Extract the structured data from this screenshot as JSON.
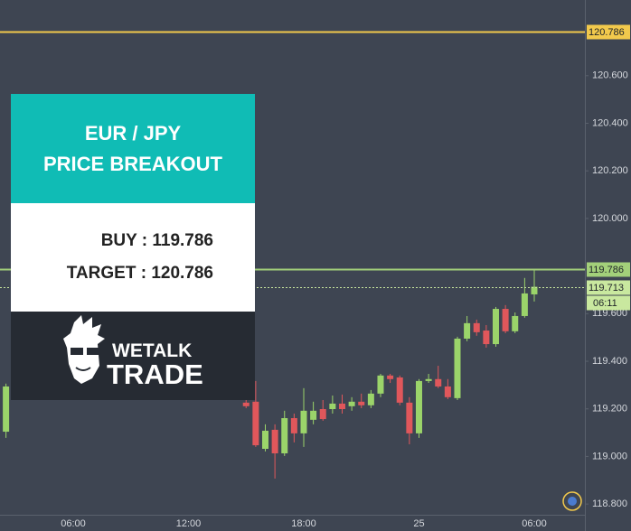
{
  "chart_data": {
    "type": "candlestick",
    "categories": [
      null,
      null,
      null,
      null,
      null,
      null,
      null,
      "06:00",
      null,
      null,
      null,
      null,
      null,
      null,
      null,
      null,
      null,
      null,
      null,
      "12:00",
      null,
      null,
      null,
      null,
      null,
      null,
      null,
      null,
      null,
      null,
      null,
      "18:00",
      null,
      null,
      null,
      null,
      null,
      null,
      null,
      null,
      null,
      null,
      null,
      "25",
      null,
      null,
      null,
      null,
      null,
      null,
      null,
      null,
      null,
      null,
      null,
      "06:00"
    ],
    "open": [
      119.104,
      null,
      null,
      null,
      null,
      null,
      null,
      null,
      null,
      null,
      null,
      null,
      null,
      null,
      null,
      null,
      null,
      null,
      null,
      null,
      null,
      null,
      null,
      null,
      null,
      119.226,
      119.23,
      119.032,
      119.112,
      119.013,
      119.161,
      119.097,
      119.154,
      119.199,
      119.199,
      119.222,
      119.211,
      119.23,
      119.215,
      119.264,
      119.34,
      119.332,
      119.226,
      119.097,
      119.317,
      119.325,
      119.294,
      119.245,
      119.495,
      119.56,
      119.529,
      119.472,
      119.62,
      119.526,
      119.59,
      119.681
    ],
    "high": [
      119.306,
      null,
      null,
      null,
      null,
      null,
      null,
      null,
      null,
      null,
      null,
      null,
      null,
      null,
      null,
      null,
      null,
      null,
      null,
      null,
      null,
      null,
      null,
      null,
      null,
      119.237,
      119.317,
      119.135,
      119.135,
      119.192,
      119.18,
      119.287,
      119.23,
      119.237,
      119.256,
      119.26,
      119.249,
      119.264,
      119.279,
      119.347,
      119.347,
      119.34,
      119.249,
      119.325,
      119.347,
      119.381,
      119.325,
      119.503,
      119.59,
      119.575,
      119.552,
      119.628,
      119.636,
      119.605,
      119.75,
      119.787
    ],
    "low": [
      119.078,
      null,
      null,
      null,
      null,
      null,
      null,
      null,
      null,
      null,
      null,
      null,
      null,
      null,
      null,
      null,
      null,
      null,
      null,
      null,
      null,
      null,
      null,
      null,
      null,
      119.203,
      119.04,
      119.021,
      118.907,
      119.002,
      119.059,
      119.04,
      119.135,
      119.15,
      119.18,
      119.18,
      119.192,
      119.203,
      119.203,
      119.249,
      119.309,
      119.215,
      119.051,
      119.078,
      119.309,
      119.287,
      119.241,
      119.237,
      119.484,
      119.507,
      119.457,
      119.461,
      119.518,
      119.518,
      119.583,
      119.651
    ],
    "close": [
      119.294,
      null,
      null,
      null,
      null,
      null,
      null,
      null,
      null,
      null,
      null,
      null,
      null,
      null,
      null,
      null,
      null,
      null,
      null,
      null,
      null,
      null,
      null,
      null,
      null,
      119.211,
      119.047,
      119.108,
      119.013,
      119.161,
      119.097,
      119.192,
      119.192,
      119.157,
      119.222,
      119.199,
      119.23,
      119.215,
      119.264,
      119.34,
      119.325,
      119.226,
      119.097,
      119.317,
      119.325,
      119.294,
      119.249,
      119.495,
      119.56,
      119.522,
      119.472,
      119.62,
      119.526,
      119.59,
      119.685,
      119.713
    ],
    "up_color": "#9bd46a",
    "down_color": "#e0575b",
    "ylim": [
      118.755,
      120.918
    ],
    "yticks": [
      {
        "value": 118.8,
        "label": "118.800"
      },
      {
        "value": 119.0,
        "label": "119.000"
      },
      {
        "value": 119.2,
        "label": "119.200"
      },
      {
        "value": 119.4,
        "label": "119.400"
      },
      {
        "value": 119.6,
        "label": "119.600"
      },
      {
        "value": 120.0,
        "label": "120.000"
      },
      {
        "value": 120.2,
        "label": "120.200"
      },
      {
        "value": 120.4,
        "label": "120.400"
      },
      {
        "value": 120.6,
        "label": "120.600"
      }
    ],
    "price_lines": [
      {
        "value": 120.786,
        "color": "#f2c94c",
        "style": "solid"
      },
      {
        "value": 119.786,
        "color": "#a3d07a",
        "style": "solid"
      },
      {
        "value": 119.713,
        "color": "#c9e89f",
        "style": "dotted"
      }
    ],
    "countdown": "06:11"
  },
  "card": {
    "header": [
      "EUR / JPY",
      "PRICE BREAKOUT"
    ],
    "buy": "BUY : 119.786",
    "target": "TARGET : 120.786",
    "logo": [
      "WETALK",
      "TRADE"
    ]
  }
}
